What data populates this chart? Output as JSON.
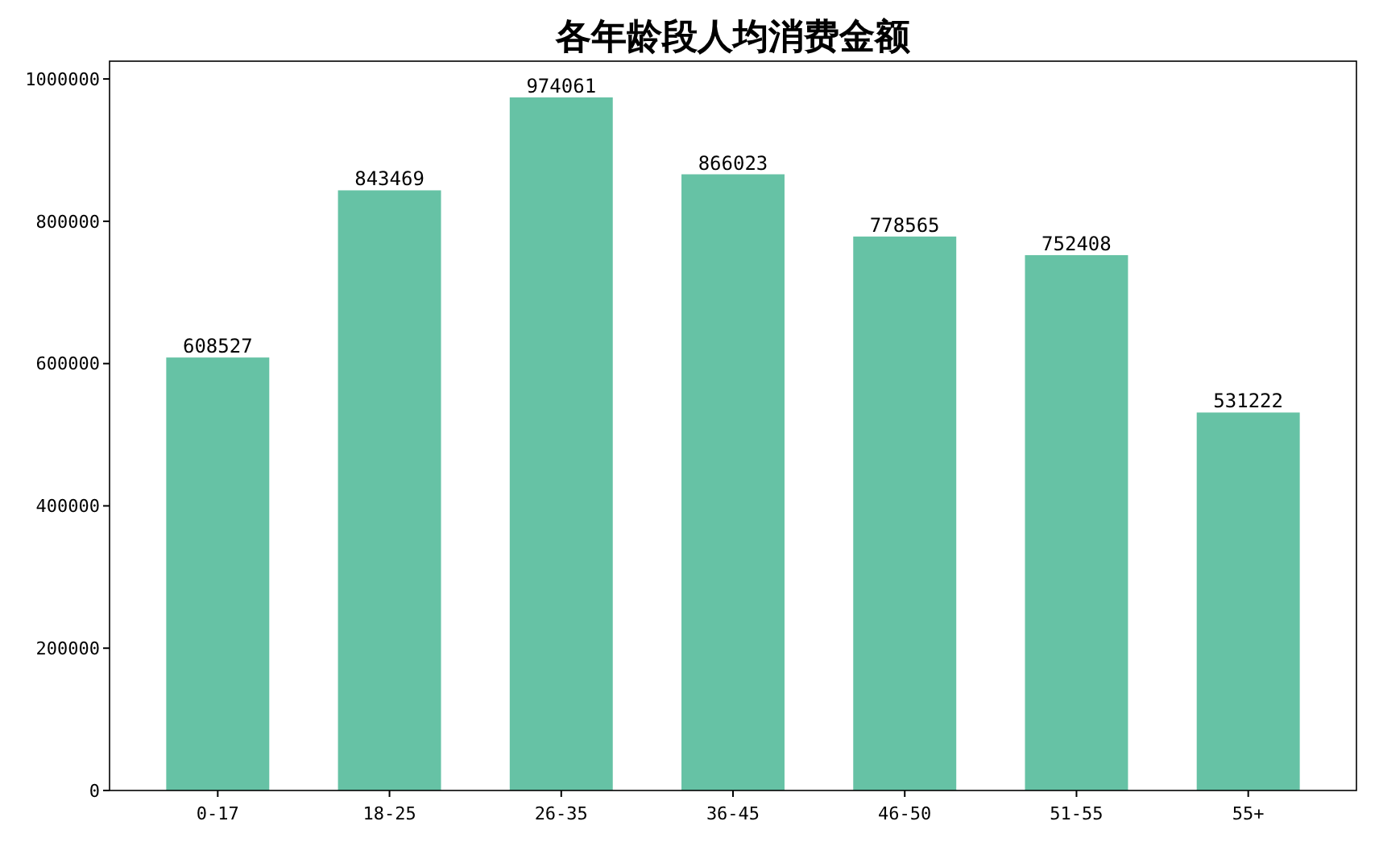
{
  "chart_data": {
    "type": "bar",
    "title": "各年龄段人均消费金额",
    "categories": [
      "0-17",
      "18-25",
      "26-35",
      "36-45",
      "46-50",
      "51-55",
      "55+"
    ],
    "values": [
      608527,
      843469,
      974061,
      866023,
      778565,
      752408,
      531222
    ],
    "color": "#66c2a5",
    "ylim": [
      0,
      1025000
    ],
    "yticks": [
      0,
      200000,
      400000,
      600000,
      800000,
      1000000
    ],
    "grid": false,
    "data_labels": true
  }
}
